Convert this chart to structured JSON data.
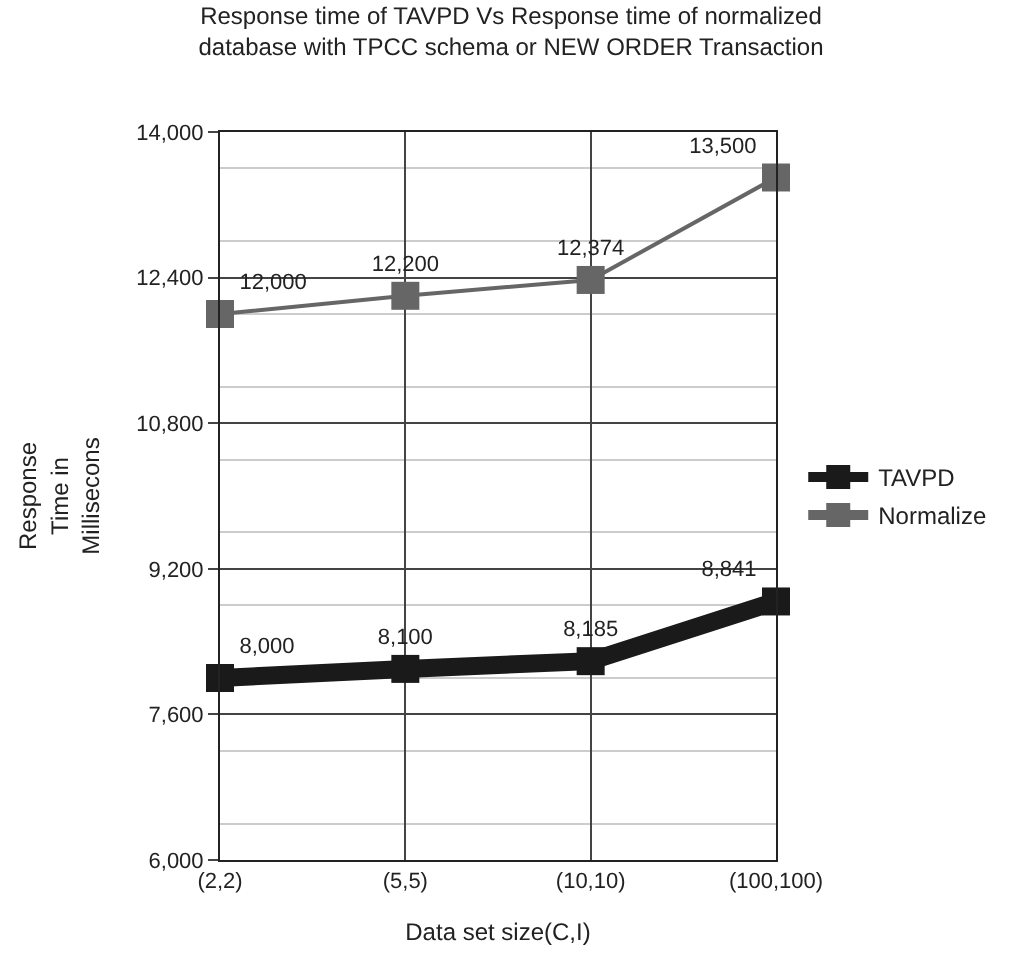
{
  "chart_data": {
    "type": "line",
    "title": "Response time of TAVPD Vs Response time of normalized\ndatabase with TPCC schema or NEW ORDER Transaction",
    "xlabel": "Data set size(C,I)",
    "ylabel": "Response\nTime in\nMillisecons",
    "categories": [
      "(2,2)",
      "(5,5)",
      "(10,10)",
      "(100,100)"
    ],
    "series": [
      {
        "name": "TAVPD",
        "color": "#1a1a1a",
        "values": [
          8000,
          8100,
          8185,
          8841
        ],
        "value_labels": [
          "8,000",
          "8,100",
          "8,185",
          "8,841"
        ]
      },
      {
        "name": "Normalize",
        "color": "#666666",
        "values": [
          12000,
          12200,
          12374,
          13500
        ],
        "value_labels": [
          "12,000",
          "12,200",
          "12,374",
          "13,500"
        ]
      }
    ],
    "ylim": [
      6000,
      14000
    ],
    "yticks": [
      {
        "value": 6000,
        "label": "6,000"
      },
      {
        "value": 7600,
        "label": "7,600"
      },
      {
        "value": 9200,
        "label": "9,200"
      },
      {
        "value": 10800,
        "label": "10,800"
      },
      {
        "value": 12400,
        "label": "12,400"
      },
      {
        "value": 14000,
        "label": "14,000"
      }
    ],
    "grid": true,
    "legend": "right",
    "marker": "square",
    "line_style": "solid"
  }
}
